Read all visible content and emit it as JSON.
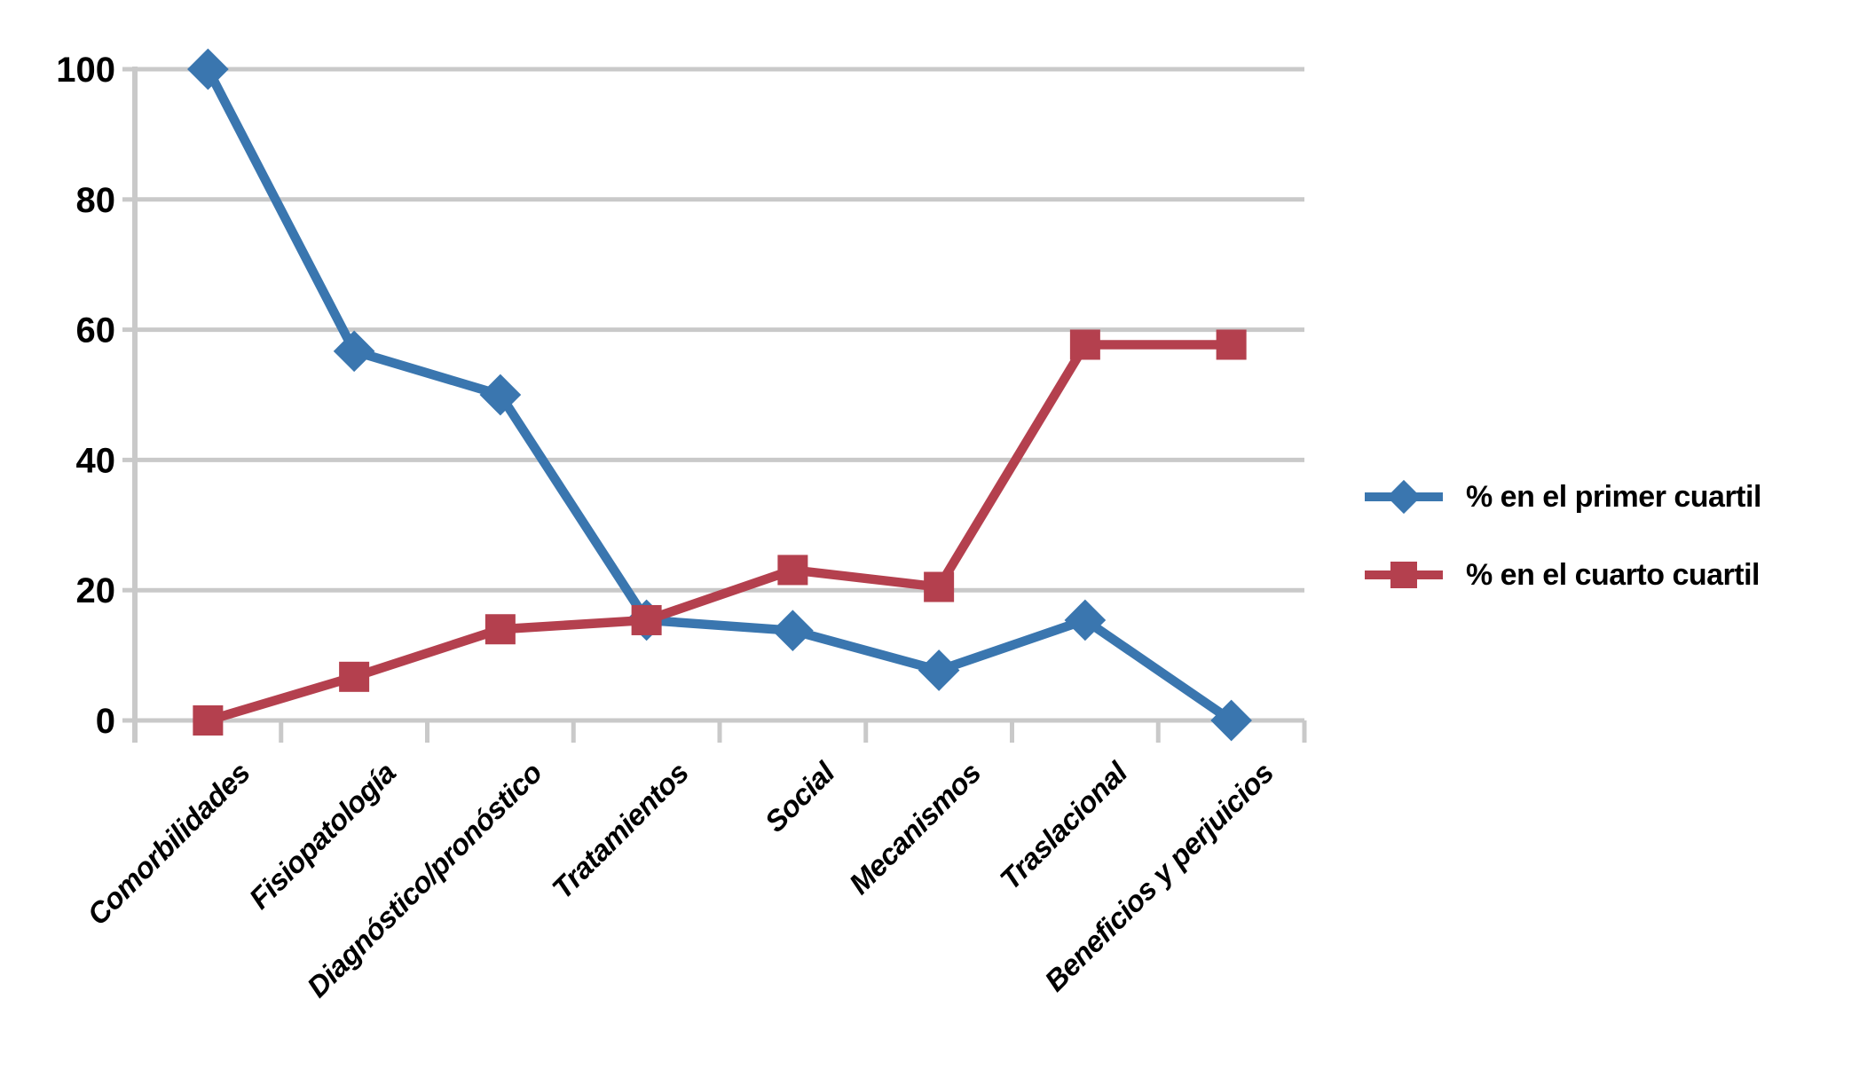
{
  "chart_data": {
    "type": "line",
    "categories": [
      "Comorbilidades",
      "Fisiopatología",
      "Diagnóstico/pronóstico",
      "Tratamientos",
      "Social",
      "Mecanismos",
      "Traslacional",
      "Beneficios y perjuicios"
    ],
    "series": [
      {
        "name": "% en el primer cuartil",
        "marker": "diamond",
        "color": "#3A76AF",
        "values": [
          100,
          56.7,
          50,
          15.4,
          13.8,
          7.7,
          15.4,
          0
        ]
      },
      {
        "name": "% en el cuarto cuartil",
        "marker": "square",
        "color": "#B4404E",
        "values": [
          0,
          6.7,
          14,
          15.4,
          23.1,
          20.5,
          57.7,
          57.7
        ]
      }
    ],
    "title": "",
    "xlabel": "",
    "ylabel": "",
    "y_ticks": [
      0,
      20,
      40,
      60,
      80,
      100
    ],
    "ylim": [
      0,
      100
    ],
    "grid": true,
    "legend_position": "right"
  },
  "colors": {
    "grid": "#C9C9C9",
    "axis": "#C9C9C9",
    "text": "#000000",
    "background": "#FFFFFF"
  }
}
